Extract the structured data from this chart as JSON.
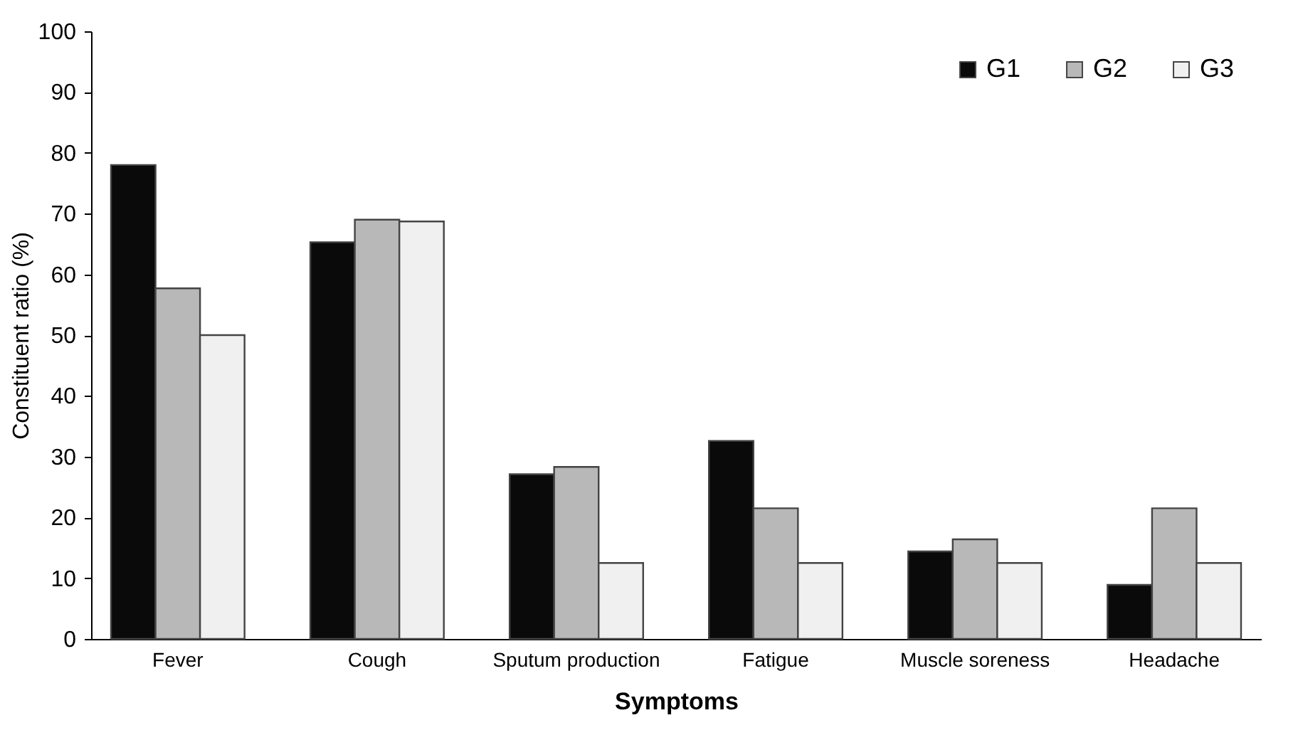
{
  "chart_data": {
    "type": "bar",
    "xlabel": "Symptoms",
    "ylabel": "Constituent ratio (%)",
    "categories": [
      "Fever",
      "Cough",
      "Sputum production",
      "Fatigue",
      "Muscle soreness",
      "Headache"
    ],
    "series": [
      {
        "name": "G1",
        "color": "#0a0a0a",
        "values": [
          78.0,
          65.3,
          27.1,
          32.6,
          14.4,
          8.9
        ]
      },
      {
        "name": "G2",
        "color": "#b8b8b8",
        "values": [
          57.7,
          69.0,
          28.3,
          21.5,
          16.4,
          21.5
        ]
      },
      {
        "name": "G3",
        "color": "#f0f0f0",
        "values": [
          50.0,
          68.7,
          12.5,
          12.5,
          12.5,
          12.5
        ]
      }
    ],
    "ylim": [
      0,
      100
    ],
    "yticks": [
      0,
      10,
      20,
      30,
      40,
      50,
      60,
      70,
      80,
      90,
      100
    ],
    "grid": false,
    "legend": "top right"
  }
}
